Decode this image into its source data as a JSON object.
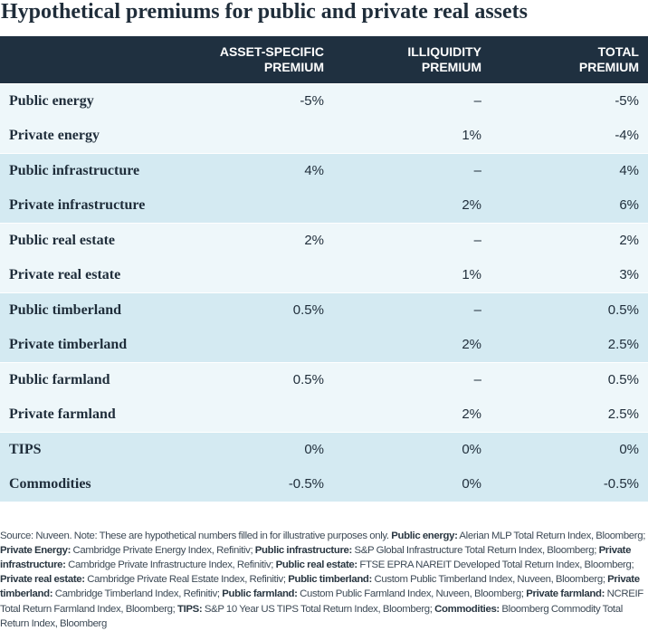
{
  "title": "Hypothetical premiums for public and private real assets",
  "table": {
    "headers": [
      {
        "line1": "",
        "line2": ""
      },
      {
        "line1": "ASSET-SPECIFIC",
        "line2": "PREMIUM"
      },
      {
        "line1": "ILLIQUIDITY",
        "line2": "PREMIUM"
      },
      {
        "line1": "TOTAL",
        "line2": "PREMIUM"
      }
    ],
    "rows": [
      {
        "label": "Public energy",
        "asset": "-5%",
        "illiquidity": "–",
        "total": "-5%"
      },
      {
        "label": "Private energy",
        "asset": "",
        "illiquidity": "1%",
        "total": "-4%"
      },
      {
        "label": "Public infrastructure",
        "asset": "4%",
        "illiquidity": "–",
        "total": "4%"
      },
      {
        "label": "Private infrastructure",
        "asset": "",
        "illiquidity": "2%",
        "total": "6%"
      },
      {
        "label": "Public real estate",
        "asset": "2%",
        "illiquidity": "–",
        "total": "2%"
      },
      {
        "label": "Private real estate",
        "asset": "",
        "illiquidity": "1%",
        "total": "3%"
      },
      {
        "label": "Public timberland",
        "asset": "0.5%",
        "illiquidity": "–",
        "total": "0.5%"
      },
      {
        "label": "Private timberland",
        "asset": "",
        "illiquidity": "2%",
        "total": "2.5%"
      },
      {
        "label": "Public farmland",
        "asset": "0.5%",
        "illiquidity": "–",
        "total": "0.5%"
      },
      {
        "label": "Private farmland",
        "asset": "",
        "illiquidity": "2%",
        "total": "2.5%"
      },
      {
        "label": "TIPS",
        "asset": "0%",
        "illiquidity": "0%",
        "total": "0%"
      },
      {
        "label": "Commodities",
        "asset": "-0.5%",
        "illiquidity": "0%",
        "total": "-0.5%"
      }
    ]
  },
  "source": {
    "intro": "Source: Nuveen. Note: These are hypothetical numbers filled in for illustrative purposes only.",
    "items": [
      {
        "key": "Public energy:",
        "text": "Alerian MLP Total Return Index, Bloomberg;"
      },
      {
        "key": "Private Energy:",
        "text": "Cambridge Private Energy Index, Refinitiv;"
      },
      {
        "key": "Public infrastructure:",
        "text": "S&P Global Infrastructure Total Return Index, Bloomberg;"
      },
      {
        "key": "Private infrastructure:",
        "text": "Cambridge Private Infrastructure Index, Refinitiv;"
      },
      {
        "key": "Public real estate:",
        "text": "FTSE EPRA NAREIT Developed Total Return Index, Bloomberg;"
      },
      {
        "key": "Private real estate:",
        "text": "Cambridge Private Real Estate Index, Refinitiv;"
      },
      {
        "key": "Public timberland:",
        "text": "Custom Public Timberland Index, Nuveen, Bloomberg;"
      },
      {
        "key": "Private timberland:",
        "text": "Cambridge Timberland Index, Refinitiv;"
      },
      {
        "key": "Public farmland:",
        "text": "Custom Public Farmland Index, Nuveen, Bloomberg;"
      },
      {
        "key": "Private farmland:",
        "text": "NCREIF Total Return Farmland Index, Bloomberg;"
      },
      {
        "key": "TIPS:",
        "text": "S&P 10 Year US TIPS Total Return Index, Bloomberg;"
      },
      {
        "key": "Commodities:",
        "text": "Bloomberg Commodity Total Return Index, Bloomberg"
      }
    ]
  }
}
